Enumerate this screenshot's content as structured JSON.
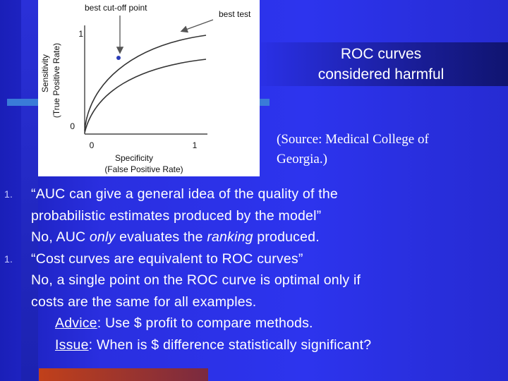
{
  "slide": {
    "title_lines": [
      "ROC curves",
      "considered harmful"
    ],
    "source_lines": [
      "(Source: Medical College of",
      "Georgia.)"
    ],
    "bullet_number": "1.",
    "bullet1": {
      "line1": "“AUC can give a general idea of the quality of the",
      "line2": "probabilistic estimates produced by the model”",
      "line3_a": "No, AUC ",
      "line3_b": "only",
      "line3_c": " evaluates the ",
      "line3_d": "ranking",
      "line3_e": " produced."
    },
    "bullet2": {
      "line1": "“Cost curves are equivalent to ROC curves”",
      "line2": "No, a single point on the ROC curve is optimal only if",
      "line3": "costs are the same for all examples.",
      "advice_label": "Advice",
      "advice_text": ": Use $ profit to compare methods.",
      "issue_label": "Issue",
      "issue_text": ": When is $ difference statistically significant?"
    }
  },
  "figure": {
    "annotations": {
      "best_cutoff": "best cut-off point",
      "best_test": "best test"
    },
    "y_axis": {
      "label1": "Sensitivity",
      "label2": "(True Positive Rate)",
      "tick_top": "1",
      "tick_bottom": "0"
    },
    "x_axis": {
      "label1": "Specificity",
      "label2": "(False Positive Rate)",
      "tick_left": "0",
      "tick_right": "1"
    },
    "colors": {
      "curve": "#333333",
      "arrow": "#555555",
      "point": "#2a3bb8"
    }
  }
}
